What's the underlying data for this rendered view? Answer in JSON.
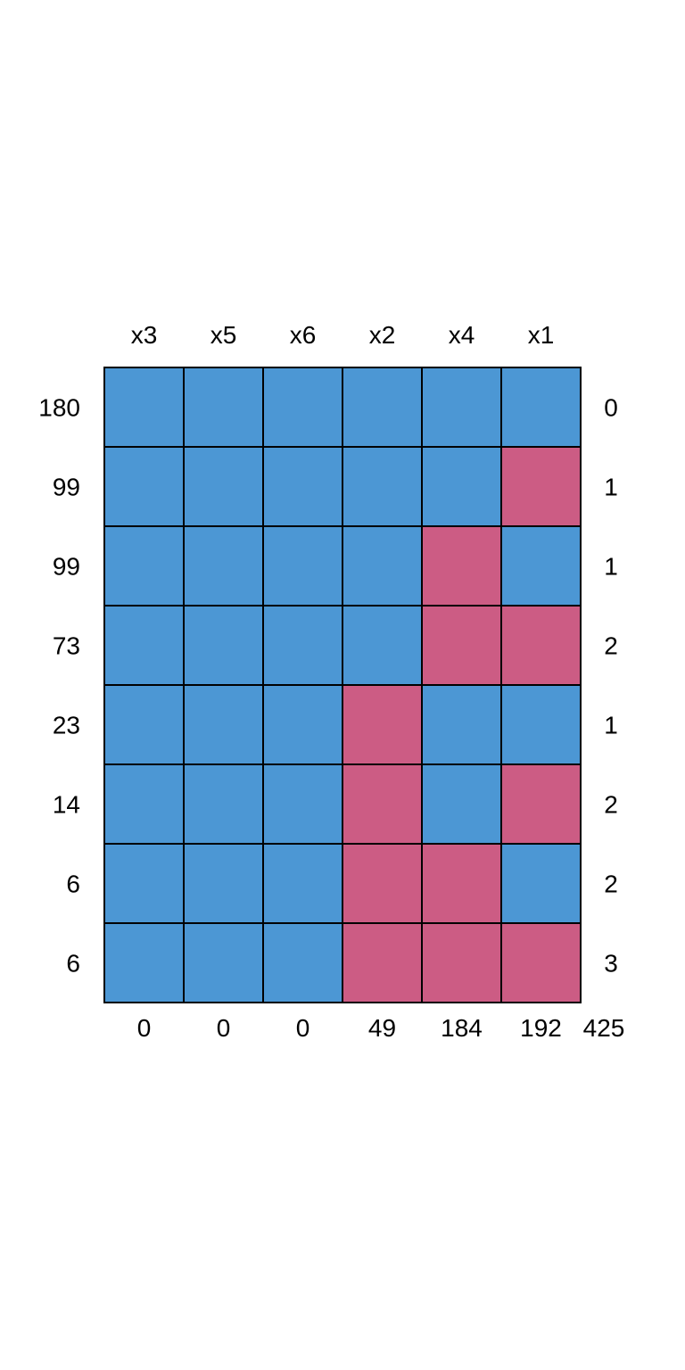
{
  "chart_data": {
    "type": "heatmap",
    "columns": [
      "x3",
      "x5",
      "x6",
      "x2",
      "x4",
      "x1"
    ],
    "row_counts": [
      "180",
      "99",
      "99",
      "73",
      "23",
      "14",
      "6",
      "6"
    ],
    "row_missing_counts": [
      "0",
      "1",
      "1",
      "2",
      "1",
      "2",
      "2",
      "3"
    ],
    "column_missing_counts": [
      "0",
      "0",
      "0",
      "49",
      "184",
      "192"
    ],
    "total_missing": "425",
    "matrix": [
      [
        1,
        1,
        1,
        1,
        1,
        1
      ],
      [
        1,
        1,
        1,
        1,
        1,
        0
      ],
      [
        1,
        1,
        1,
        1,
        0,
        1
      ],
      [
        1,
        1,
        1,
        1,
        0,
        0
      ],
      [
        1,
        1,
        1,
        0,
        1,
        1
      ],
      [
        1,
        1,
        1,
        0,
        1,
        0
      ],
      [
        1,
        1,
        1,
        0,
        0,
        1
      ],
      [
        1,
        1,
        1,
        0,
        0,
        0
      ]
    ],
    "colors": {
      "observed": "#4C97D4",
      "missing": "#CC5C84",
      "border": "#000000"
    }
  }
}
